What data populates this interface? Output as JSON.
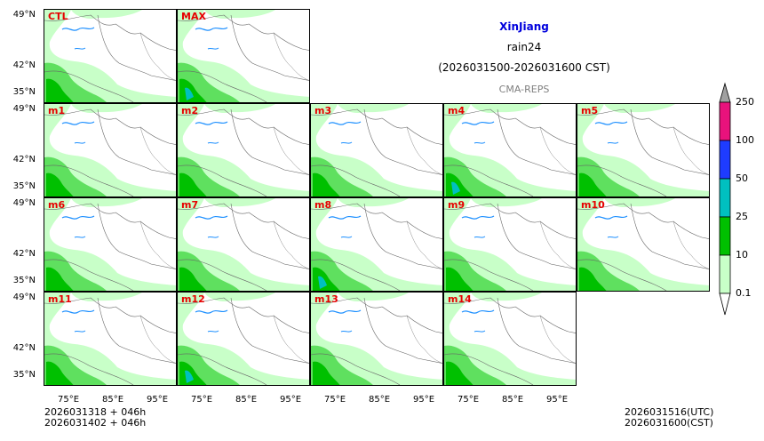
{
  "header": {
    "region": "XinJiang",
    "variable": "rain24",
    "period": "(2026031500-2026031600 CST)",
    "model": "CMA-REPS"
  },
  "panels": [
    "CTL",
    "MAX",
    "m1",
    "m2",
    "m3",
    "m4",
    "m5",
    "m6",
    "m7",
    "m8",
    "m9",
    "m10",
    "m11",
    "m12",
    "m13",
    "m14"
  ],
  "y_ticks": [
    "49°N",
    "42°N",
    "35°N"
  ],
  "x_ticks": [
    "75°E",
    "85°E",
    "95°E"
  ],
  "colorbar": {
    "levels": [
      "250",
      "100",
      "50",
      "25",
      "10",
      "0.1"
    ],
    "colors": [
      "#e8127c",
      "#1e3cff",
      "#00c0c0",
      "#00c000",
      "#c8ffc8"
    ],
    "over_color": "#a0a0a0",
    "under_color": "#ffffff"
  },
  "footer": {
    "init_line1": "2026031318  +  046h",
    "init_line2": "2026031402  +  046h",
    "valid_utc": "2026031516(UTC)",
    "valid_cst": "2026031600(CST)"
  }
}
